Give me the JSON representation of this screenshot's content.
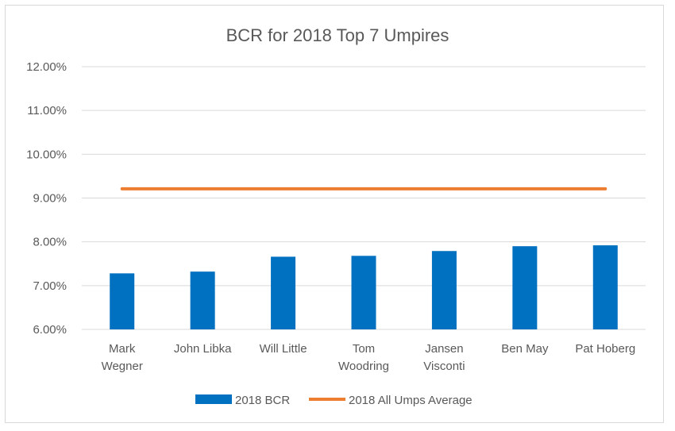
{
  "chart_data": {
    "type": "bar",
    "title": "BCR for 2018 Top 7 Umpires",
    "categories": [
      [
        "Mark",
        "Wegner"
      ],
      [
        "John Libka"
      ],
      [
        "Will Little"
      ],
      [
        "Tom",
        "Woodring"
      ],
      [
        "Jansen",
        "Visconti"
      ],
      [
        "Ben May"
      ],
      [
        "Pat Hoberg"
      ]
    ],
    "series": [
      {
        "name": "2018 BCR",
        "type": "bar",
        "color": "#0070C0",
        "values": [
          7.28,
          7.32,
          7.66,
          7.68,
          7.79,
          7.9,
          7.92
        ]
      },
      {
        "name": "2018 All Umps Average",
        "type": "line",
        "color": "#ED7D31",
        "values": [
          9.21,
          9.21,
          9.21,
          9.21,
          9.21,
          9.21,
          9.21
        ]
      }
    ],
    "ylim": [
      6.0,
      12.0
    ],
    "yticks": [
      6,
      7,
      8,
      9,
      10,
      11,
      12
    ],
    "ytick_labels": [
      "6.00%",
      "7.00%",
      "8.00%",
      "9.00%",
      "10.00%",
      "11.00%",
      "12.00%"
    ],
    "grid": true,
    "legend_position": "bottom"
  }
}
